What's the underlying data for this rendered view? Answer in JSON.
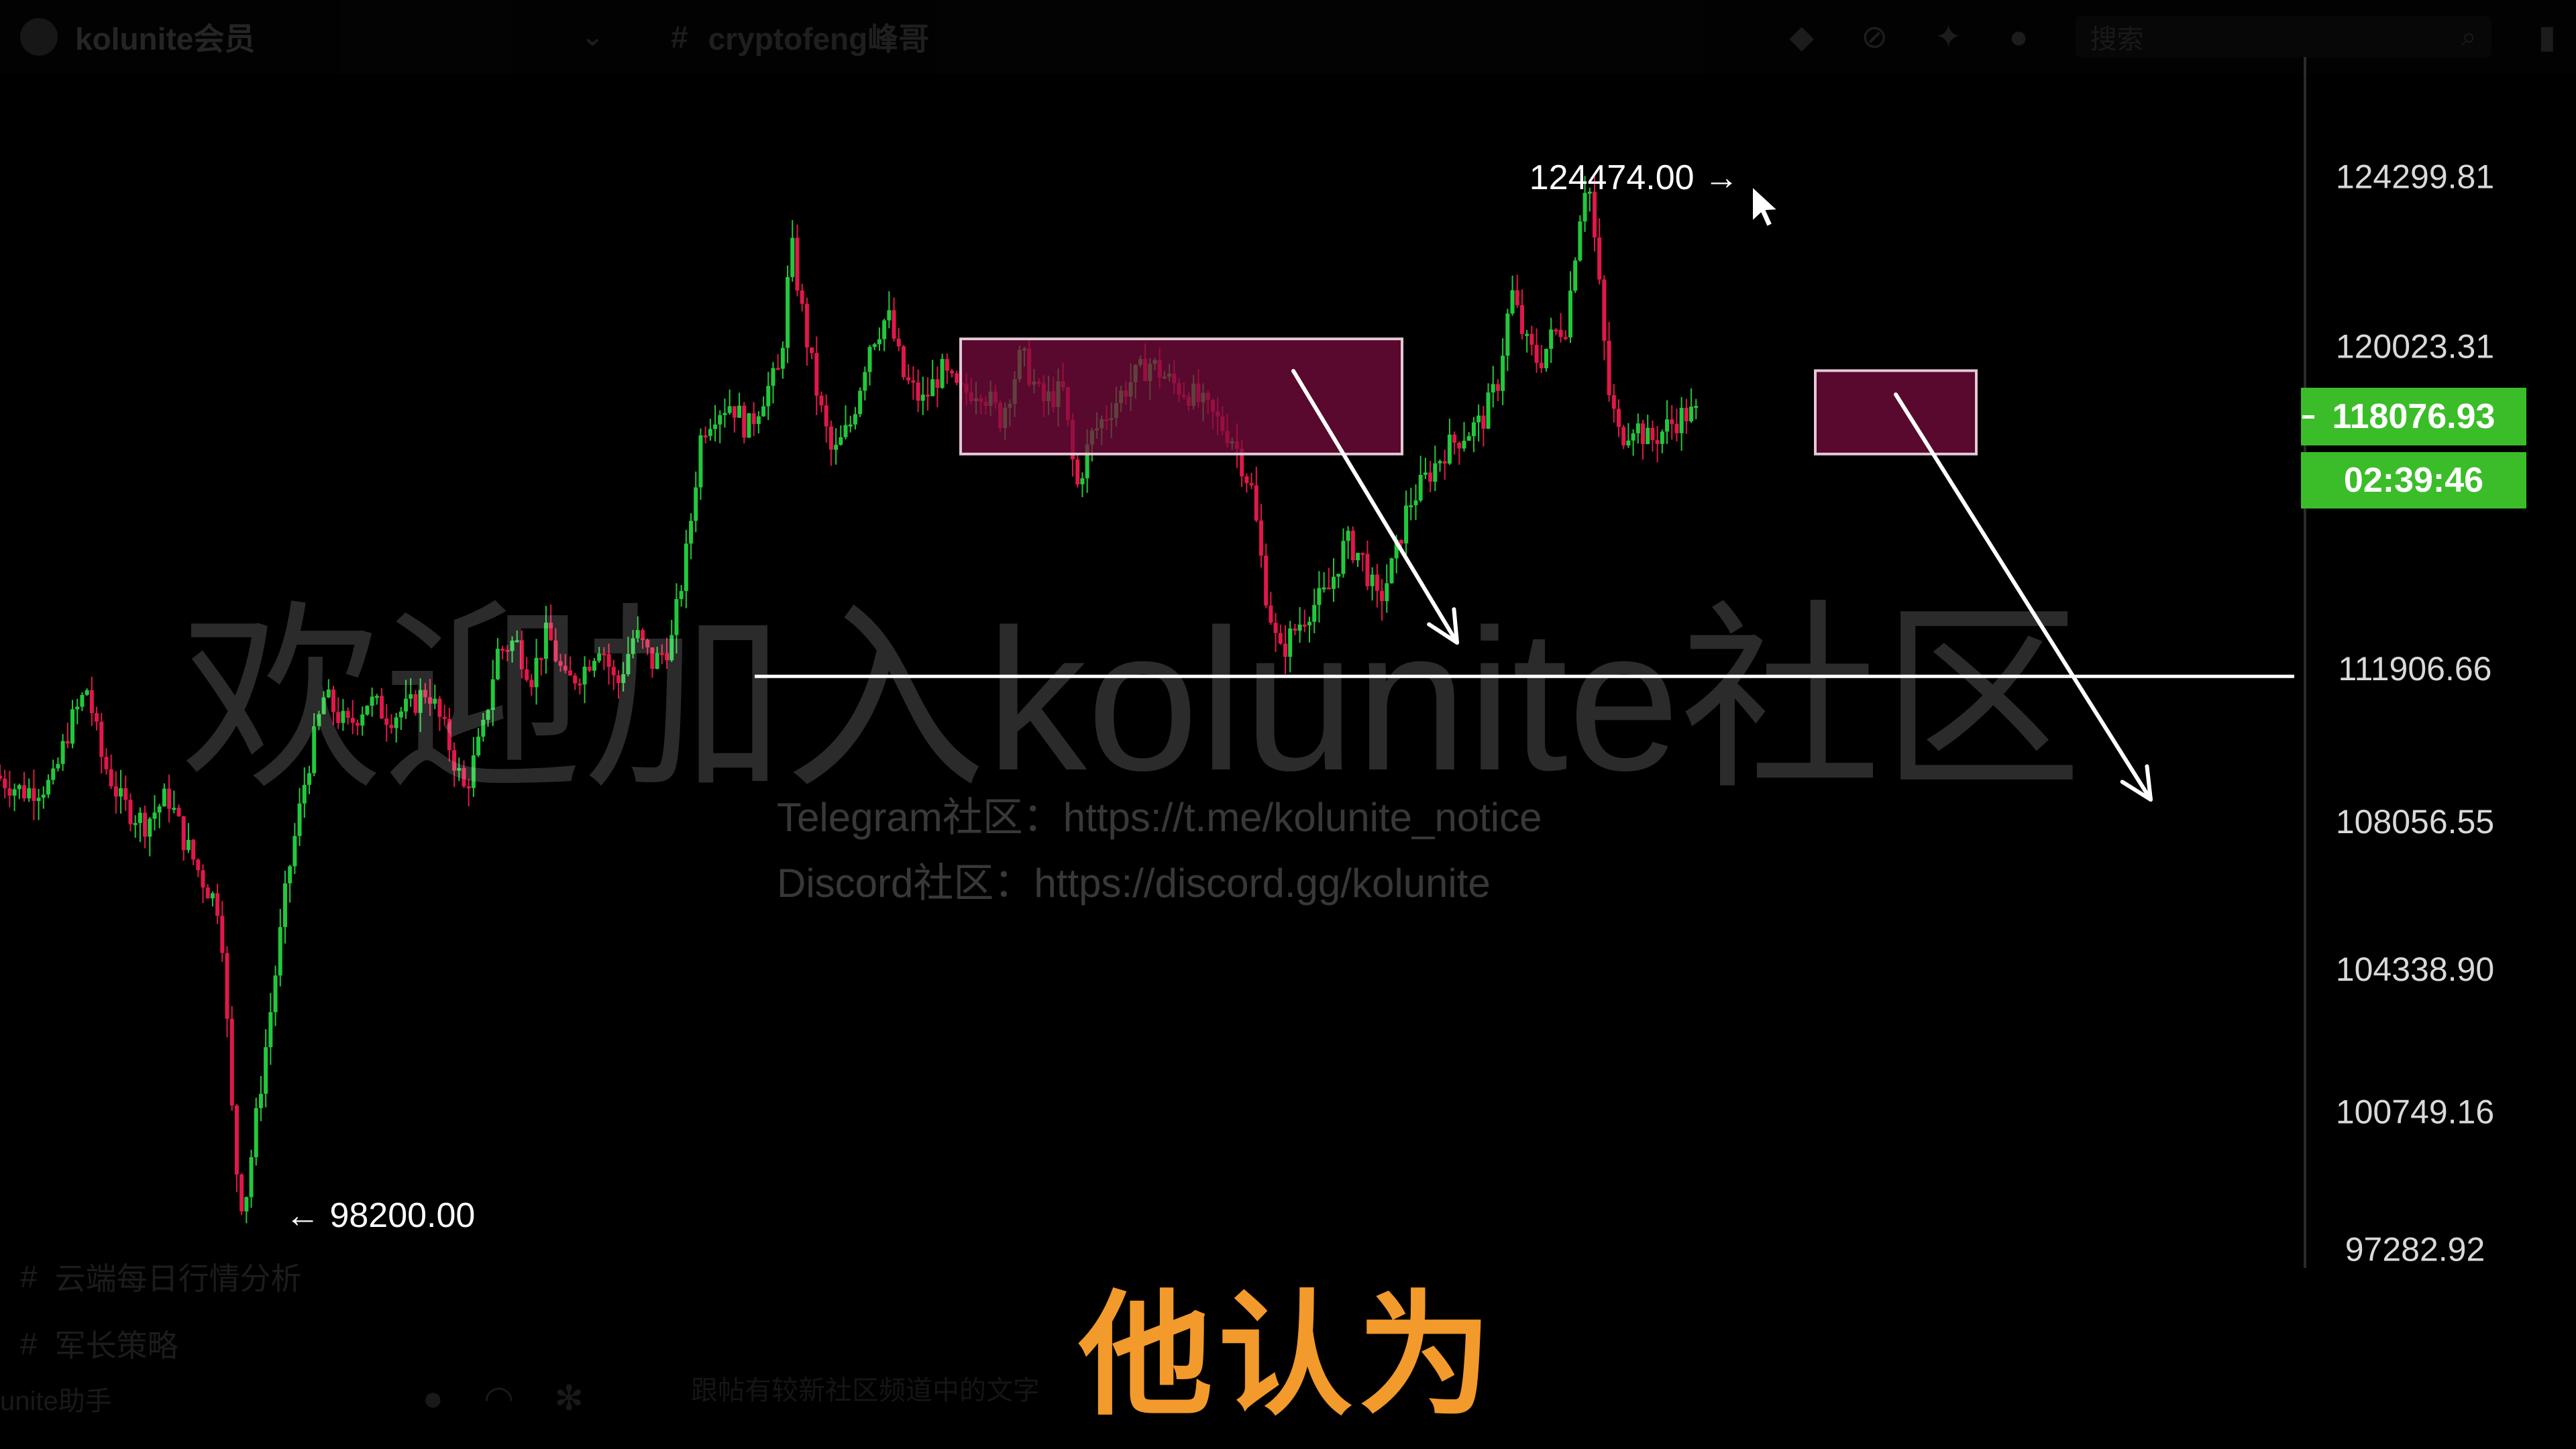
{
  "topbar": {
    "server_name": "kolunite会员",
    "channel_name": "cryptofeng峰哥",
    "search_placeholder": "搜索",
    "icons": [
      "hash-icon",
      "threads-icon",
      "mute-icon",
      "pin-icon",
      "members-icon",
      "search-icon",
      "inbox-icon"
    ]
  },
  "sidebar": {
    "channel_1": "云端每日行情分析",
    "channel_2": "军长策略",
    "user_name": "unite助手",
    "icons": [
      "microphone-icon",
      "headphones-icon",
      "gear-icon"
    ]
  },
  "message_input_placeholder": "跟帖有较新社区频道中的文字",
  "watermark": {
    "main": "欢迎加入kolunite社区",
    "telegram": "Telegram社区：https://t.me/kolunite_notice",
    "discord": "Discord社区：https://discord.gg/kolunite"
  },
  "subtitle": "他认为",
  "price_badge": {
    "price": "118076.93",
    "timer": "02:39:46",
    "color": "#3bbd2a"
  },
  "chart_data": {
    "type": "candlestick",
    "y_axis_ticks": [
      "124299.81",
      "120023.31",
      "111906.66",
      "108056.55",
      "104338.90",
      "100749.16",
      "97282.92"
    ],
    "y_axis_values": [
      124299.81,
      120023.31,
      111906.66,
      108056.55,
      104338.9,
      100749.16,
      97282.92
    ],
    "ylim": [
      96800,
      127300
    ],
    "colors": {
      "up": "#22c83c",
      "down": "#e0184a",
      "box_fill": "#7a0d3e",
      "box_border": "#e4c8d6",
      "lines": "#ffffff"
    },
    "annotations": {
      "high_label": "124474.00",
      "high_value": 124474.0,
      "low_label": "98200.00",
      "low_value": 98200.0,
      "horizontal_line_value": 111700,
      "box1": {
        "y_top": 120200,
        "y_bottom": 117300
      },
      "box2": {
        "y_top": 119400,
        "y_bottom": 117300
      }
    },
    "price_path": [
      [
        0,
        109200
      ],
      [
        0.012,
        108800
      ],
      [
        0.025,
        109000
      ],
      [
        0.032,
        110400
      ],
      [
        0.04,
        111400
      ],
      [
        0.046,
        109700
      ],
      [
        0.055,
        108500
      ],
      [
        0.065,
        108000
      ],
      [
        0.075,
        108700
      ],
      [
        0.082,
        107600
      ],
      [
        0.09,
        106600
      ],
      [
        0.098,
        105800
      ],
      [
        0.104,
        99600
      ],
      [
        0.108,
        98200
      ],
      [
        0.114,
        100800
      ],
      [
        0.12,
        103400
      ],
      [
        0.127,
        106600
      ],
      [
        0.135,
        109200
      ],
      [
        0.143,
        111200
      ],
      [
        0.153,
        110400
      ],
      [
        0.162,
        111100
      ],
      [
        0.171,
        110700
      ],
      [
        0.18,
        110900
      ],
      [
        0.188,
        111400
      ],
      [
        0.196,
        110200
      ],
      [
        0.204,
        108800
      ],
      [
        0.212,
        110300
      ],
      [
        0.218,
        112300
      ],
      [
        0.226,
        112600
      ],
      [
        0.233,
        111700
      ],
      [
        0.24,
        112800
      ],
      [
        0.248,
        111500
      ],
      [
        0.256,
        111900
      ],
      [
        0.263,
        112600
      ],
      [
        0.27,
        111400
      ],
      [
        0.278,
        112800
      ],
      [
        0.286,
        112000
      ],
      [
        0.294,
        112600
      ],
      [
        0.301,
        115000
      ],
      [
        0.307,
        117900
      ],
      [
        0.313,
        118400
      ],
      [
        0.32,
        118600
      ],
      [
        0.327,
        117900
      ],
      [
        0.334,
        118800
      ],
      [
        0.341,
        119400
      ],
      [
        0.346,
        122600
      ],
      [
        0.352,
        120400
      ],
      [
        0.358,
        118600
      ],
      [
        0.364,
        117200
      ],
      [
        0.372,
        118100
      ],
      [
        0.38,
        120100
      ],
      [
        0.388,
        120800
      ],
      [
        0.395,
        119200
      ],
      [
        0.403,
        118600
      ],
      [
        0.411,
        119400
      ],
      [
        0.419,
        118800
      ],
      [
        0.428,
        119000
      ],
      [
        0.437,
        118200
      ],
      [
        0.446,
        119800
      ],
      [
        0.455,
        118600
      ],
      [
        0.464,
        118900
      ],
      [
        0.47,
        116400
      ],
      [
        0.476,
        117700
      ],
      [
        0.484,
        118400
      ],
      [
        0.493,
        119100
      ],
      [
        0.502,
        119600
      ],
      [
        0.511,
        119100
      ],
      [
        0.52,
        118800
      ],
      [
        0.53,
        118200
      ],
      [
        0.538,
        117700
      ],
      [
        0.546,
        116400
      ],
      [
        0.552,
        113900
      ],
      [
        0.558,
        112200
      ],
      [
        0.564,
        112800
      ],
      [
        0.571,
        113400
      ],
      [
        0.579,
        113800
      ],
      [
        0.587,
        115100
      ],
      [
        0.594,
        114700
      ],
      [
        0.601,
        113500
      ],
      [
        0.608,
        114600
      ],
      [
        0.614,
        116000
      ],
      [
        0.622,
        116700
      ],
      [
        0.63,
        117400
      ],
      [
        0.638,
        117800
      ],
      [
        0.646,
        118100
      ],
      [
        0.653,
        119100
      ],
      [
        0.659,
        121400
      ],
      [
        0.665,
        120100
      ],
      [
        0.671,
        119600
      ],
      [
        0.677,
        120300
      ],
      [
        0.683,
        120600
      ],
      [
        0.688,
        123100
      ],
      [
        0.692,
        124474
      ],
      [
        0.697,
        121600
      ],
      [
        0.701,
        118900
      ],
      [
        0.706,
        117700
      ],
      [
        0.712,
        118100
      ],
      [
        0.719,
        117600
      ],
      [
        0.727,
        118000
      ],
      [
        0.734,
        118300
      ],
      [
        0.738,
        118300
      ]
    ]
  }
}
